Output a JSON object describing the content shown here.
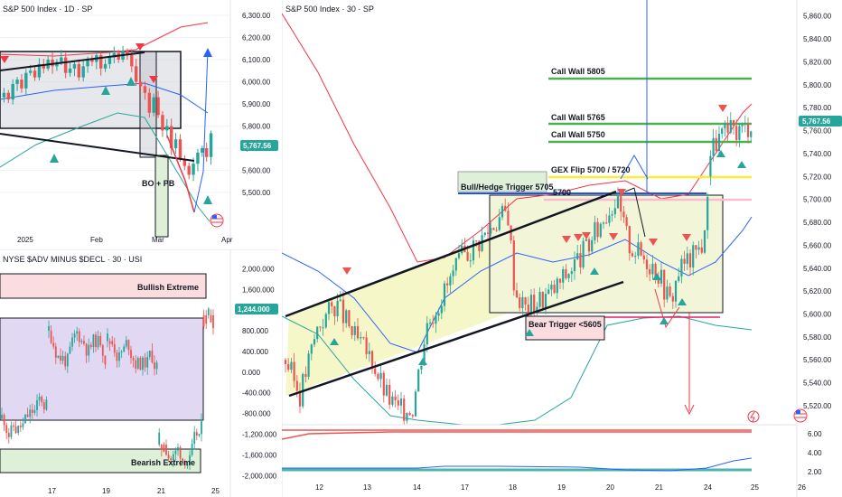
{
  "colors": {
    "up": "#26a69a",
    "down": "#ef5350",
    "upper_band": "#f23645",
    "lower_band": "#2962ff",
    "call_wall": "#4caf50",
    "gex_flip": "#ffeb3b",
    "bull_trigger": "#1e53e5",
    "bear_trigger": "#e91e63",
    "box_gray": "#d1d4dc",
    "box_yellow": "#f5f7c9",
    "box_pink": "#fbdde0",
    "box_purple": "#e1d8f3",
    "box_green": "#dff0d8",
    "price_tag": "#26a69a",
    "arrow_blue": "#2962ff",
    "arrow_red": "#f23645"
  },
  "left_top": {
    "title": "S&P 500 Index · 1D · SP",
    "price_label": "5,767.56",
    "annotation": "BO + PB",
    "chart_data": {
      "type": "candlestick",
      "ylim": [
        5300,
        6300
      ],
      "y_ticks": [
        "6,300.00",
        "6,200.00",
        "6,100.00",
        "6,000.00",
        "5,900.00",
        "5,800.00",
        "5,700.00",
        "5,600.00",
        "5,500.00"
      ],
      "x_ticks": [
        "2025",
        "Feb",
        "Mar",
        "Apr"
      ],
      "last_price": 5767.56,
      "closes": [
        5950,
        5920,
        5990,
        6010,
        5970,
        6040,
        6050,
        6020,
        6080,
        6060,
        6100,
        6070,
        6090,
        6110,
        6040,
        6060,
        6080,
        6020,
        6070,
        6100,
        6090,
        6120,
        6060,
        6080,
        6110,
        6130,
        6100,
        6140,
        6120,
        6070,
        6000,
        5980,
        5950,
        5860,
        5930,
        5850,
        5780,
        5800,
        5700,
        5740,
        5650,
        5620,
        5580,
        5630,
        5680,
        5700,
        5660,
        5767.56
      ]
    }
  },
  "left_bottom": {
    "title": "NYSE $ADV MINUS $DECL · 30 · USI",
    "price_label": "1,244.000",
    "top_zone_label": "Bullish Extreme",
    "bottom_zone_label": "Bearish Extreme",
    "chart_data": {
      "type": "bar",
      "ylim": [
        -2100,
        2200
      ],
      "y_ticks": [
        "2,000.000",
        "1,600.000",
        "1,200.000",
        "800.000",
        "400.000",
        "0.000",
        "-400.000",
        "-800.000",
        "-1,200.000",
        "-1,600.000",
        "-2,000.000"
      ],
      "x_ticks": [
        "17",
        "19",
        "21",
        "25"
      ],
      "last_value": 1244
    }
  },
  "right": {
    "title": "S&P 500 Index · 30 · SP",
    "price_label": "5,767.56",
    "levels": {
      "call_wall_5805": "Call Wall 5805",
      "call_wall_5765": "Call Wall 5765",
      "call_wall_5750": "Call Wall 5750",
      "gex_flip": "GEX Flip 5700 / 5720",
      "level_5700": "5700",
      "bull_trigger": "Bull/Hedge Trigger 5705",
      "bear_trigger": "Bear Trigger <5605"
    },
    "chart_data": {
      "type": "candlestick",
      "ylim": [
        5505,
        5870
      ],
      "y_ticks": [
        "5,860.00",
        "5,840.00",
        "5,820.00",
        "5,800.00",
        "5,780.00",
        "5,760.00",
        "5,740.00",
        "5,720.00",
        "5,700.00",
        "5,680.00",
        "5,660.00",
        "5,640.00",
        "5,620.00",
        "5,600.00",
        "5,580.00",
        "5,560.00",
        "5,540.00",
        "5,520.00"
      ],
      "x_ticks": [
        "12",
        "13",
        "14",
        "17",
        "18",
        "19",
        "20",
        "21",
        "24",
        "25",
        "26"
      ],
      "last_price": 5767.56,
      "key_levels": [
        5805,
        5765,
        5750,
        5720,
        5705,
        5700,
        5605
      ]
    },
    "sub_indicator": {
      "y_ticks": [
        "6.00",
        "4.00",
        "2.00"
      ]
    }
  }
}
